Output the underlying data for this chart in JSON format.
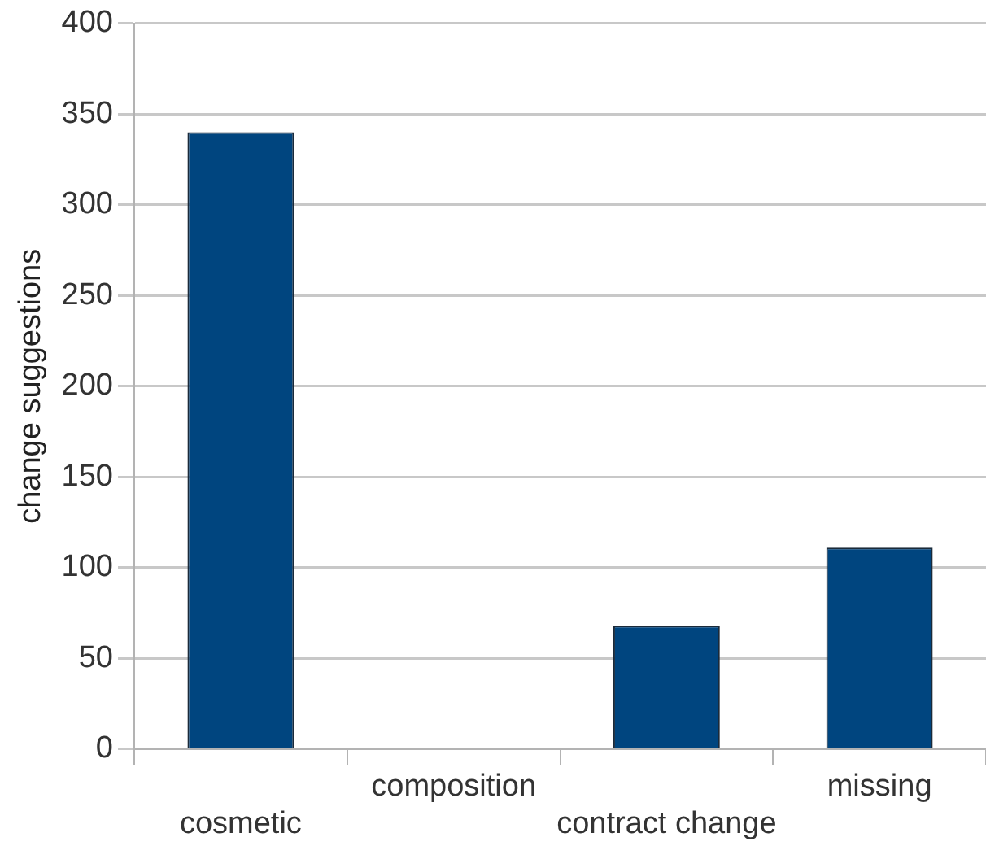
{
  "chart_data": {
    "type": "bar",
    "ylabel": "change suggestions",
    "categories": [
      "cosmetic",
      "composition",
      "contract change",
      "missing"
    ],
    "values": [
      340,
      0,
      68,
      111
    ],
    "color": "#00457f",
    "ylim": [
      0,
      400
    ],
    "yticks": [
      0,
      50,
      100,
      150,
      200,
      250,
      300,
      350,
      400
    ],
    "grid": "y",
    "legend": false
  }
}
